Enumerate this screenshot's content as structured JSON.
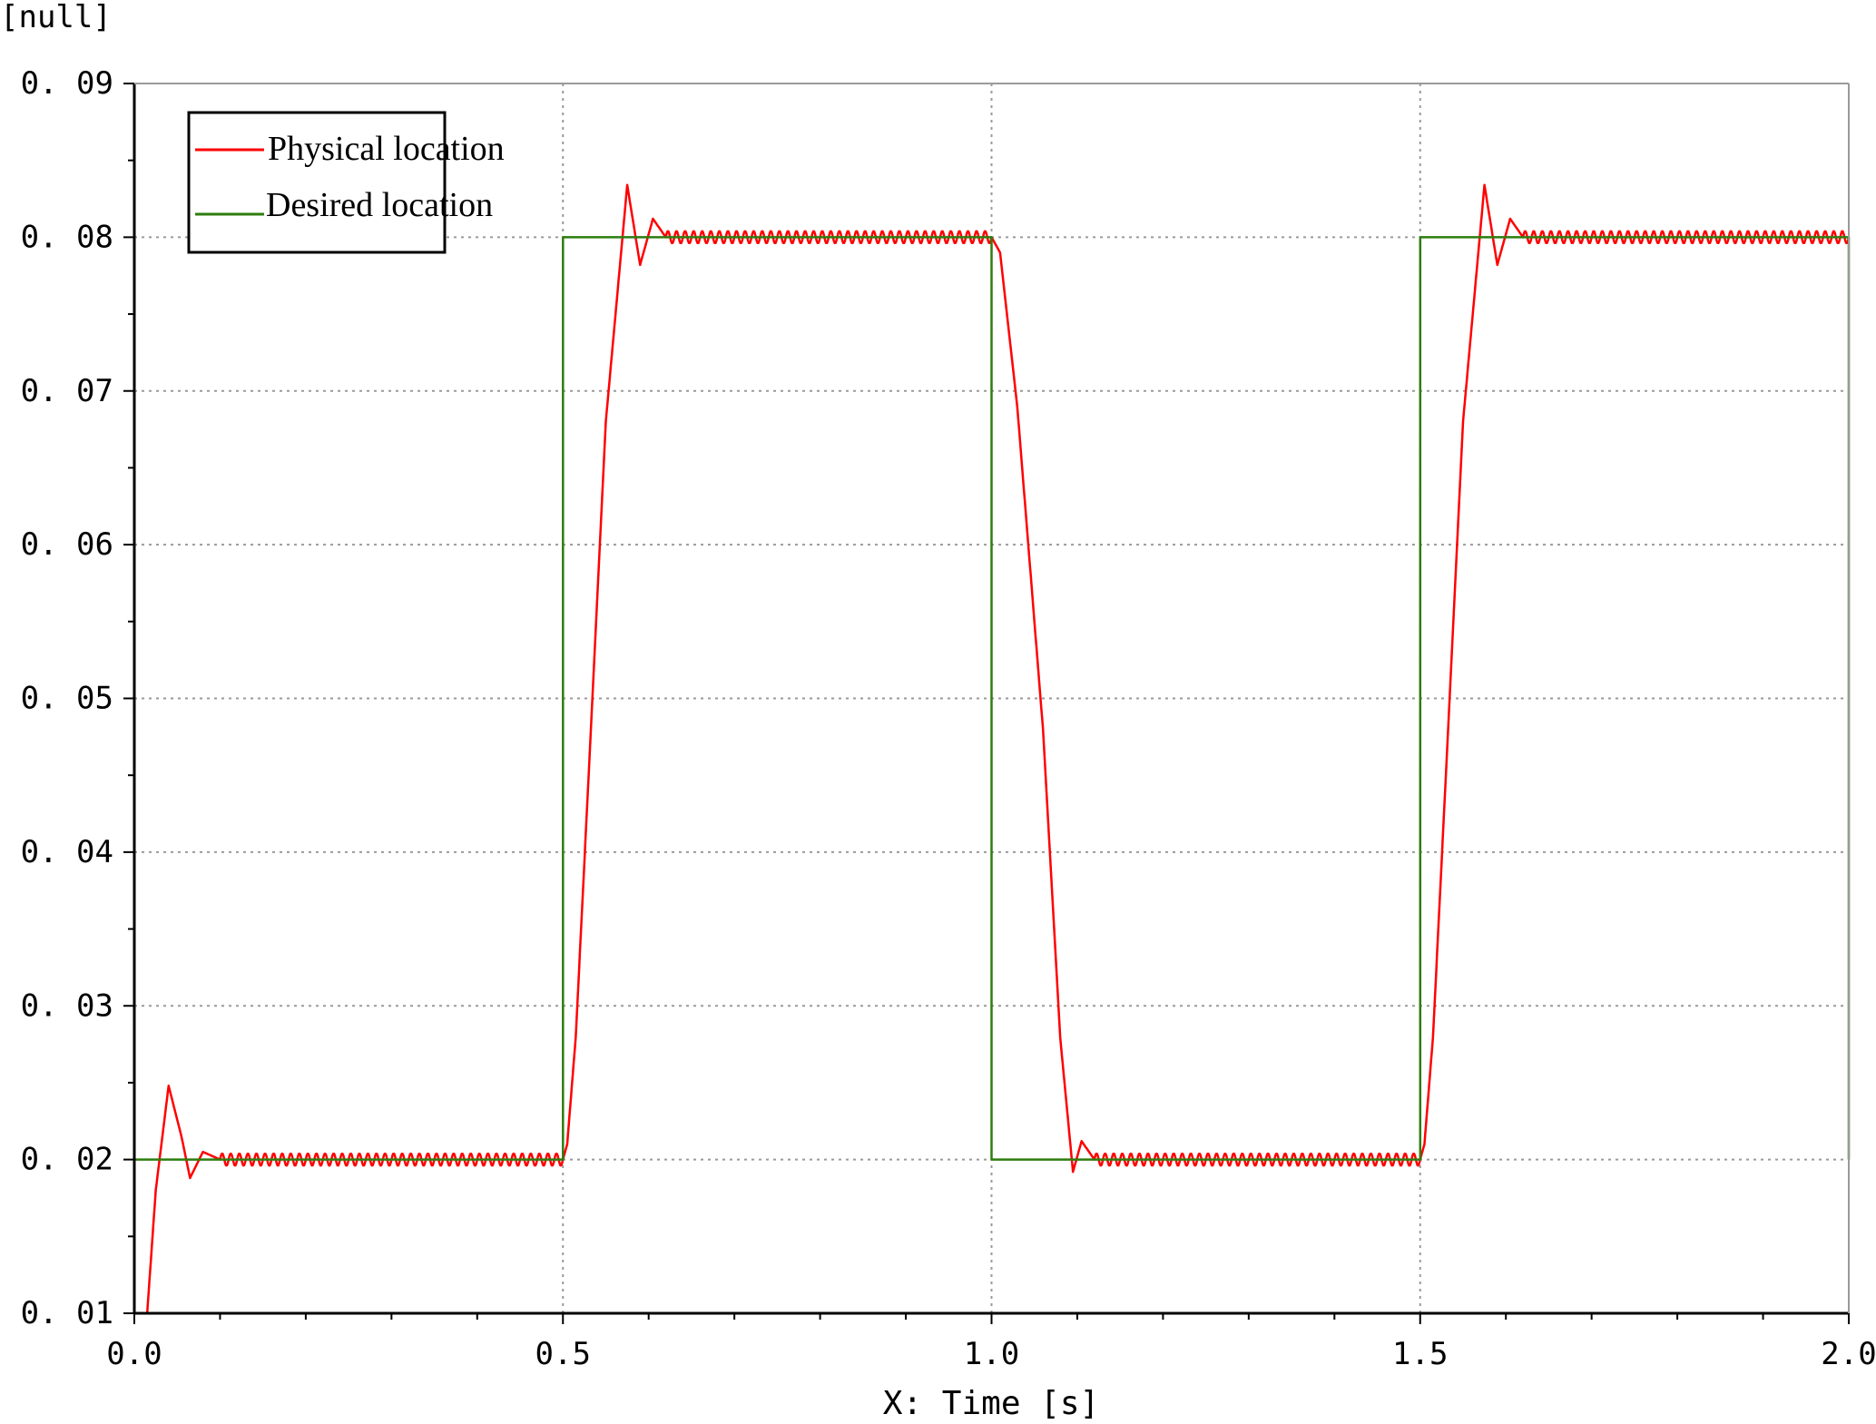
{
  "chart_data": {
    "type": "line",
    "y_unit_label": "[null]",
    "xlabel": "X: Time [s]",
    "ylabel": "",
    "xlim": [
      0.0,
      2.0
    ],
    "ylim": [
      0.01,
      0.09
    ],
    "x_ticks": [
      "0.0",
      "0.5",
      "1.0",
      "1.5",
      "2.0"
    ],
    "y_ticks": [
      "0.01",
      "0.02",
      "0.03",
      "0.04",
      "0.05",
      "0.06",
      "0.07",
      "0.08",
      "0.09"
    ],
    "x_tick_values": [
      0.0,
      0.5,
      1.0,
      1.5,
      2.0
    ],
    "y_tick_values": [
      0.01,
      0.02,
      0.03,
      0.04,
      0.05,
      0.06,
      0.07,
      0.08,
      0.09
    ],
    "grid": true,
    "legend_position": "top-left",
    "series": [
      {
        "name": "Physical location",
        "color": "#ff0000",
        "style": "oscillating",
        "ripple_amplitude": 0.0004,
        "ripple_period": 0.01,
        "x": [
          0.015,
          0.025,
          0.04,
          0.055,
          0.065,
          0.08,
          0.1,
          0.5,
          0.505,
          0.515,
          0.53,
          0.55,
          0.575,
          0.59,
          0.605,
          0.62,
          1.0,
          1.01,
          1.03,
          1.06,
          1.08,
          1.095,
          1.105,
          1.12,
          1.5,
          1.505,
          1.515,
          1.53,
          1.55,
          1.575,
          1.59,
          1.605,
          1.62,
          2.0
        ],
        "y": [
          0.01,
          0.018,
          0.0248,
          0.0215,
          0.0188,
          0.0205,
          0.02,
          0.02,
          0.021,
          0.028,
          0.045,
          0.068,
          0.0834,
          0.0782,
          0.0812,
          0.08,
          0.08,
          0.079,
          0.069,
          0.048,
          0.028,
          0.0192,
          0.0212,
          0.02,
          0.02,
          0.021,
          0.028,
          0.045,
          0.068,
          0.0834,
          0.0782,
          0.0812,
          0.08,
          0.08
        ]
      },
      {
        "name": "Desired location",
        "color": "#2e7d0e",
        "style": "step",
        "x": [
          0.0,
          0.5,
          0.5,
          1.0,
          1.0,
          1.5,
          1.5,
          2.0,
          2.0
        ],
        "y": [
          0.02,
          0.02,
          0.08,
          0.08,
          0.02,
          0.02,
          0.08,
          0.08,
          0.02
        ]
      }
    ]
  }
}
